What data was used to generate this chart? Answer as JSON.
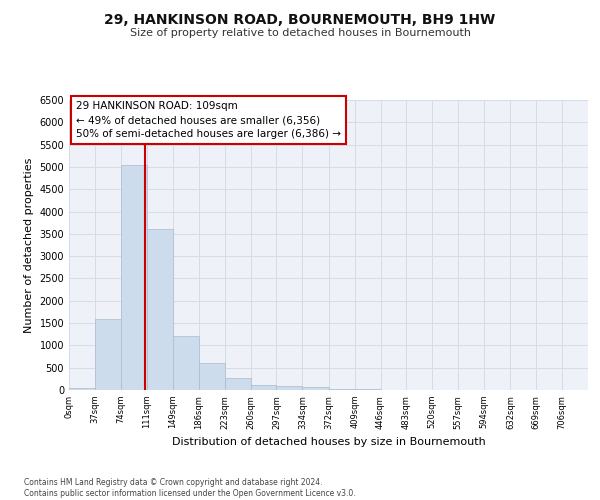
{
  "title": "29, HANKINSON ROAD, BOURNEMOUTH, BH9 1HW",
  "subtitle": "Size of property relative to detached houses in Bournemouth",
  "xlabel": "Distribution of detached houses by size in Bournemouth",
  "ylabel": "Number of detached properties",
  "bar_color": "#ccdcec",
  "bar_edge_color": "#aabbcc",
  "grid_color": "#d4dce8",
  "background_color": "#eef2f8",
  "bin_edges": [
    0,
    37,
    74,
    111,
    149,
    186,
    223,
    260,
    297,
    334,
    372,
    409,
    446,
    483,
    520,
    557,
    594,
    632,
    669,
    706,
    743
  ],
  "bar_heights": [
    50,
    1600,
    5050,
    3600,
    1200,
    600,
    270,
    120,
    90,
    60,
    30,
    15,
    8,
    4,
    3,
    2,
    1,
    1,
    1,
    0
  ],
  "ylim": [
    0,
    6500
  ],
  "yticks": [
    0,
    500,
    1000,
    1500,
    2000,
    2500,
    3000,
    3500,
    4000,
    4500,
    5000,
    5500,
    6000,
    6500
  ],
  "property_line_x": 109,
  "annotation_line1": "29 HANKINSON ROAD: 109sqm",
  "annotation_line2": "← 49% of detached houses are smaller (6,356)",
  "annotation_line3": "50% of semi-detached houses are larger (6,386) →",
  "annotation_box_color": "#ffffff",
  "annotation_box_edge": "#cc0000",
  "footer_line1": "Contains HM Land Registry data © Crown copyright and database right 2024.",
  "footer_line2": "Contains public sector information licensed under the Open Government Licence v3.0.",
  "title_fontsize": 10,
  "subtitle_fontsize": 8,
  "ylabel_fontsize": 8,
  "xlabel_fontsize": 8
}
